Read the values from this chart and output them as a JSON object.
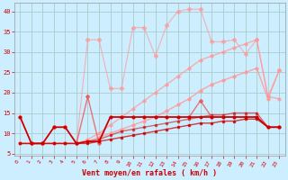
{
  "xlabel": "Vent moyen/en rafales ( km/h )",
  "bg_color": "#cceeff",
  "grid_color": "#aacccc",
  "text_color": "#cc0000",
  "xlim": [
    -0.5,
    23.5
  ],
  "ylim": [
    4.5,
    42
  ],
  "yticks": [
    5,
    10,
    15,
    20,
    25,
    30,
    35,
    40
  ],
  "xticks": [
    0,
    1,
    2,
    3,
    4,
    5,
    6,
    7,
    8,
    9,
    10,
    11,
    12,
    13,
    14,
    15,
    16,
    17,
    18,
    19,
    20,
    21,
    22,
    23
  ],
  "series": [
    {
      "x": [
        0,
        1,
        2,
        3,
        4,
        5,
        6,
        7,
        8,
        9,
        10,
        11,
        12,
        13,
        14,
        15,
        16,
        17,
        18,
        19,
        20,
        21,
        22,
        23
      ],
      "y": [
        14,
        7.5,
        7.5,
        11.5,
        11.5,
        7.5,
        8,
        8,
        14,
        14,
        14,
        14,
        14,
        14,
        14,
        14,
        14,
        14,
        14,
        14,
        14,
        14,
        11.5,
        11.5
      ],
      "color": "#cc0000",
      "lw": 1.2,
      "marker": "s",
      "ms": 1.8,
      "alpha": 1.0,
      "zorder": 5
    },
    {
      "x": [
        0,
        1,
        2,
        3,
        4,
        5,
        6,
        7,
        8,
        9,
        10,
        11,
        12,
        13,
        14,
        15,
        16,
        17,
        18,
        19,
        20,
        21,
        22,
        23
      ],
      "y": [
        7.5,
        7.5,
        7.5,
        7.5,
        7.5,
        7.5,
        7.5,
        8,
        8.5,
        9,
        9.5,
        10,
        10.5,
        11,
        11.5,
        12,
        12.5,
        12.5,
        13,
        13,
        13.5,
        13.5,
        11.5,
        11.5
      ],
      "color": "#cc0000",
      "lw": 1.0,
      "marker": "s",
      "ms": 1.5,
      "alpha": 0.75,
      "zorder": 4
    },
    {
      "x": [
        0,
        1,
        2,
        3,
        4,
        5,
        6,
        7,
        8,
        9,
        10,
        11,
        12,
        13,
        14,
        15,
        16,
        17,
        18,
        19,
        20,
        21,
        22,
        23
      ],
      "y": [
        7.5,
        7.5,
        7.5,
        7.5,
        7.5,
        7.5,
        8,
        8.5,
        9.5,
        10.5,
        11,
        11.5,
        12,
        12.5,
        13,
        13.5,
        14,
        14.5,
        14.5,
        15,
        15,
        15,
        11.5,
        11.5
      ],
      "color": "#cc0000",
      "lw": 1.0,
      "marker": "s",
      "ms": 1.5,
      "alpha": 0.55,
      "zorder": 3
    },
    {
      "x": [
        0,
        1,
        2,
        3,
        4,
        5,
        6,
        7,
        8,
        9,
        10,
        11,
        12,
        13,
        14,
        15,
        16,
        17,
        18,
        19,
        20,
        21,
        22,
        23
      ],
      "y": [
        7.5,
        7.5,
        7.5,
        7.5,
        7.5,
        7.5,
        8,
        9,
        10,
        11,
        12,
        13,
        14,
        15.5,
        17,
        18.5,
        20.5,
        22,
        23,
        24,
        25,
        26,
        18.5,
        25.5
      ],
      "color": "#ff9999",
      "lw": 1.0,
      "marker": "D",
      "ms": 1.8,
      "alpha": 0.85,
      "zorder": 2
    },
    {
      "x": [
        0,
        1,
        2,
        3,
        4,
        5,
        6,
        7,
        8,
        9,
        10,
        11,
        12,
        13,
        14,
        15,
        16,
        17,
        18,
        19,
        20,
        21,
        22,
        23
      ],
      "y": [
        7.5,
        7.5,
        7.5,
        7.5,
        7.5,
        7.5,
        8.5,
        10,
        12,
        14,
        16,
        18,
        20,
        22,
        24,
        26,
        28,
        29,
        30,
        31,
        32,
        33,
        19,
        18.5
      ],
      "color": "#ff9999",
      "lw": 1.0,
      "marker": "D",
      "ms": 1.8,
      "alpha": 0.75,
      "zorder": 2
    },
    {
      "x": [
        0,
        1,
        2,
        3,
        4,
        5,
        6,
        7,
        8,
        9,
        10,
        11,
        12,
        13,
        14,
        15,
        16,
        17,
        18,
        19,
        20,
        21,
        22,
        23
      ],
      "y": [
        14,
        7.5,
        7.5,
        11.5,
        11.5,
        7.5,
        33,
        33,
        21,
        21,
        36,
        36,
        29,
        36.5,
        40,
        40.5,
        40.5,
        32.5,
        32.5,
        33,
        29.5,
        33,
        19,
        25.5
      ],
      "color": "#ff9999",
      "lw": 0.9,
      "marker": "D",
      "ms": 2.2,
      "alpha": 0.65,
      "zorder": 1
    },
    {
      "x": [
        0,
        1,
        2,
        3,
        4,
        5,
        6,
        7,
        8,
        9,
        10,
        11,
        12,
        13,
        14,
        15,
        16,
        17,
        18,
        19,
        20,
        21,
        22,
        23
      ],
      "y": [
        14,
        7.5,
        7.5,
        11.5,
        11.5,
        7.5,
        19,
        7.5,
        14,
        14,
        14,
        14,
        14,
        14,
        14,
        14,
        18,
        14,
        14,
        14,
        14,
        14,
        11.5,
        11.5
      ],
      "color": "#ee5555",
      "lw": 1.0,
      "marker": "D",
      "ms": 2.0,
      "alpha": 0.8,
      "zorder": 3
    }
  ]
}
